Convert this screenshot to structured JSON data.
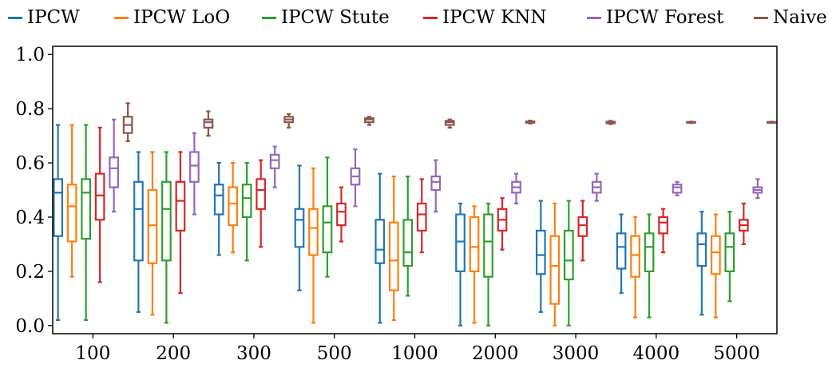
{
  "chart_data": {
    "type": "box",
    "title": "",
    "xlabel": "",
    "ylabel": "",
    "ylim": [
      -0.03,
      1.03
    ],
    "yticks": [
      "0.0",
      "0.2",
      "0.4",
      "0.6",
      "0.8",
      "1.0"
    ],
    "grid": false,
    "legend_position": "top",
    "categories": [
      "100",
      "200",
      "300",
      "500",
      "1000",
      "2000",
      "3000",
      "4000",
      "5000"
    ],
    "series": [
      {
        "name": "IPCW",
        "color": "#1f77b4",
        "boxes": [
          {
            "whislo": 0.02,
            "q1": 0.33,
            "med": 0.49,
            "q3": 0.54,
            "whishi": 0.74
          },
          {
            "whislo": 0.05,
            "q1": 0.24,
            "med": 0.43,
            "q3": 0.53,
            "whishi": 0.64
          },
          {
            "whislo": 0.26,
            "q1": 0.41,
            "med": 0.48,
            "q3": 0.52,
            "whishi": 0.6
          },
          {
            "whislo": 0.13,
            "q1": 0.29,
            "med": 0.39,
            "q3": 0.43,
            "whishi": 0.59
          },
          {
            "whislo": 0.01,
            "q1": 0.23,
            "med": 0.28,
            "q3": 0.39,
            "whishi": 0.56
          },
          {
            "whislo": 0.0,
            "q1": 0.2,
            "med": 0.31,
            "q3": 0.41,
            "whishi": 0.45
          },
          {
            "whislo": 0.05,
            "q1": 0.19,
            "med": 0.26,
            "q3": 0.35,
            "whishi": 0.46
          },
          {
            "whislo": 0.12,
            "q1": 0.21,
            "med": 0.29,
            "q3": 0.34,
            "whishi": 0.41
          },
          {
            "whislo": 0.04,
            "q1": 0.22,
            "med": 0.3,
            "q3": 0.34,
            "whishi": 0.42
          }
        ]
      },
      {
        "name": "IPCW LoO",
        "color": "#ff7f0e",
        "boxes": [
          {
            "whislo": 0.18,
            "q1": 0.31,
            "med": 0.44,
            "q3": 0.52,
            "whishi": 0.74
          },
          {
            "whislo": 0.04,
            "q1": 0.23,
            "med": 0.37,
            "q3": 0.5,
            "whishi": 0.64
          },
          {
            "whislo": 0.27,
            "q1": 0.37,
            "med": 0.45,
            "q3": 0.51,
            "whishi": 0.6
          },
          {
            "whislo": 0.01,
            "q1": 0.26,
            "med": 0.36,
            "q3": 0.43,
            "whishi": 0.58
          },
          {
            "whislo": 0.02,
            "q1": 0.13,
            "med": 0.24,
            "q3": 0.38,
            "whishi": 0.55
          },
          {
            "whislo": 0.01,
            "q1": 0.2,
            "med": 0.29,
            "q3": 0.4,
            "whishi": 0.44
          },
          {
            "whislo": 0.0,
            "q1": 0.08,
            "med": 0.22,
            "q3": 0.33,
            "whishi": 0.45
          },
          {
            "whislo": 0.03,
            "q1": 0.18,
            "med": 0.26,
            "q3": 0.33,
            "whishi": 0.4
          },
          {
            "whislo": 0.03,
            "q1": 0.19,
            "med": 0.27,
            "q3": 0.33,
            "whishi": 0.41
          }
        ]
      },
      {
        "name": "IPCW Stute",
        "color": "#2ca02c",
        "boxes": [
          {
            "whislo": 0.02,
            "q1": 0.32,
            "med": 0.49,
            "q3": 0.54,
            "whishi": 0.74
          },
          {
            "whislo": 0.01,
            "q1": 0.24,
            "med": 0.43,
            "q3": 0.53,
            "whishi": 0.64
          },
          {
            "whislo": 0.24,
            "q1": 0.4,
            "med": 0.47,
            "q3": 0.52,
            "whishi": 0.6
          },
          {
            "whislo": 0.18,
            "q1": 0.27,
            "med": 0.38,
            "q3": 0.44,
            "whishi": 0.62
          },
          {
            "whislo": 0.11,
            "q1": 0.22,
            "med": 0.27,
            "q3": 0.39,
            "whishi": 0.55
          },
          {
            "whislo": 0.0,
            "q1": 0.18,
            "med": 0.31,
            "q3": 0.41,
            "whishi": 0.45
          },
          {
            "whislo": 0.0,
            "q1": 0.17,
            "med": 0.24,
            "q3": 0.35,
            "whishi": 0.46
          },
          {
            "whislo": 0.03,
            "q1": 0.2,
            "med": 0.29,
            "q3": 0.34,
            "whishi": 0.41
          },
          {
            "whislo": 0.09,
            "q1": 0.2,
            "med": 0.29,
            "q3": 0.34,
            "whishi": 0.42
          }
        ]
      },
      {
        "name": "IPCW KNN",
        "color": "#d62728",
        "boxes": [
          {
            "whislo": 0.16,
            "q1": 0.39,
            "med": 0.48,
            "q3": 0.56,
            "whishi": 0.73
          },
          {
            "whislo": 0.12,
            "q1": 0.35,
            "med": 0.46,
            "q3": 0.53,
            "whishi": 0.64
          },
          {
            "whislo": 0.29,
            "q1": 0.43,
            "med": 0.5,
            "q3": 0.54,
            "whishi": 0.61
          },
          {
            "whislo": 0.31,
            "q1": 0.37,
            "med": 0.42,
            "q3": 0.45,
            "whishi": 0.51
          },
          {
            "whislo": 0.27,
            "q1": 0.35,
            "med": 0.41,
            "q3": 0.45,
            "whishi": 0.54
          },
          {
            "whislo": 0.28,
            "q1": 0.35,
            "med": 0.39,
            "q3": 0.43,
            "whishi": 0.47
          },
          {
            "whislo": 0.24,
            "q1": 0.33,
            "med": 0.37,
            "q3": 0.4,
            "whishi": 0.46
          },
          {
            "whislo": 0.27,
            "q1": 0.34,
            "med": 0.38,
            "q3": 0.4,
            "whishi": 0.43
          },
          {
            "whislo": 0.3,
            "q1": 0.35,
            "med": 0.37,
            "q3": 0.39,
            "whishi": 0.45
          }
        ]
      },
      {
        "name": "IPCW Forest",
        "color": "#9467bd",
        "boxes": [
          {
            "whislo": 0.42,
            "q1": 0.51,
            "med": 0.58,
            "q3": 0.62,
            "whishi": 0.76
          },
          {
            "whislo": 0.41,
            "q1": 0.53,
            "med": 0.59,
            "q3": 0.64,
            "whishi": 0.71
          },
          {
            "whislo": 0.51,
            "q1": 0.58,
            "med": 0.61,
            "q3": 0.63,
            "whishi": 0.66
          },
          {
            "whislo": 0.44,
            "q1": 0.52,
            "med": 0.55,
            "q3": 0.58,
            "whishi": 0.65
          },
          {
            "whislo": 0.42,
            "q1": 0.5,
            "med": 0.53,
            "q3": 0.55,
            "whishi": 0.61
          },
          {
            "whislo": 0.45,
            "q1": 0.49,
            "med": 0.51,
            "q3": 0.53,
            "whishi": 0.56
          },
          {
            "whislo": 0.46,
            "q1": 0.49,
            "med": 0.51,
            "q3": 0.53,
            "whishi": 0.56
          },
          {
            "whislo": 0.48,
            "q1": 0.49,
            "med": 0.51,
            "q3": 0.52,
            "whishi": 0.53
          },
          {
            "whislo": 0.47,
            "q1": 0.49,
            "med": 0.5,
            "q3": 0.51,
            "whishi": 0.54
          }
        ]
      },
      {
        "name": "Naive",
        "color": "#8c564b",
        "boxes": [
          {
            "whislo": 0.68,
            "q1": 0.71,
            "med": 0.74,
            "q3": 0.77,
            "whishi": 0.82
          },
          {
            "whislo": 0.7,
            "q1": 0.73,
            "med": 0.75,
            "q3": 0.76,
            "whishi": 0.79
          },
          {
            "whislo": 0.73,
            "q1": 0.75,
            "med": 0.76,
            "q3": 0.77,
            "whishi": 0.78
          },
          {
            "whislo": 0.74,
            "q1": 0.75,
            "med": 0.76,
            "q3": 0.765,
            "whishi": 0.77
          },
          {
            "whislo": 0.73,
            "q1": 0.74,
            "med": 0.75,
            "q3": 0.755,
            "whishi": 0.76
          },
          {
            "whislo": 0.745,
            "q1": 0.748,
            "med": 0.75,
            "q3": 0.753,
            "whishi": 0.756
          },
          {
            "whislo": 0.743,
            "q1": 0.746,
            "med": 0.749,
            "q3": 0.752,
            "whishi": 0.755
          },
          {
            "whislo": 0.747,
            "q1": 0.749,
            "med": 0.75,
            "q3": 0.751,
            "whishi": 0.752
          },
          {
            "whislo": 0.748,
            "q1": 0.749,
            "med": 0.75,
            "q3": 0.751,
            "whishi": 0.752
          }
        ]
      }
    ]
  }
}
